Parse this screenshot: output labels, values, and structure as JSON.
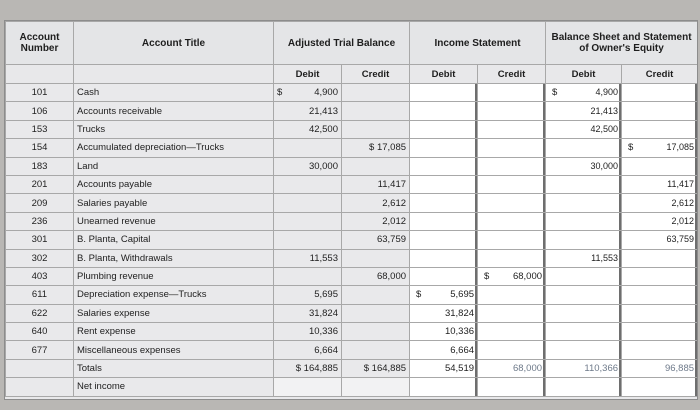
{
  "headers": {
    "account_number": "Account Number",
    "account_title": "Account Title",
    "atb": "Adjusted Trial Balance",
    "is": "Income Statement",
    "bs": "Balance Sheet and Statement of Owner's Equity"
  },
  "subheaders": {
    "atb_debit": "Debit",
    "atb_credit": "Credit",
    "is_debit": "Debit",
    "is_credit": "Credit",
    "bs_debit": "Debit",
    "bs_credit": "Credit"
  },
  "rows": [
    {
      "no": "101",
      "title": "Cash",
      "atb_d": "4,900",
      "atb_d_sym": "$",
      "atb_c": "",
      "is_d": "",
      "is_c": "",
      "bs_d": "4,900",
      "bs_d_sym": "$",
      "bs_c": ""
    },
    {
      "no": "106",
      "title": "Accounts receivable",
      "atb_d": "21,413",
      "atb_c": "",
      "is_d": "",
      "is_c": "",
      "bs_d": "21,413",
      "bs_c": ""
    },
    {
      "no": "153",
      "title": "Trucks",
      "atb_d": "42,500",
      "atb_c": "",
      "is_d": "",
      "is_c": "",
      "bs_d": "42,500",
      "bs_c": ""
    },
    {
      "no": "154",
      "title": "Accumulated depreciation—Trucks",
      "atb_d": "",
      "atb_c": "$ 17,085",
      "is_d": "",
      "is_c": "",
      "bs_d": "",
      "bs_c": "17,085",
      "bs_c_sym": "$"
    },
    {
      "no": "183",
      "title": "Land",
      "atb_d": "30,000",
      "atb_c": "",
      "is_d": "",
      "is_c": "",
      "bs_d": "30,000",
      "bs_c": ""
    },
    {
      "no": "201",
      "title": "Accounts payable",
      "atb_d": "",
      "atb_c": "11,417",
      "is_d": "",
      "is_c": "",
      "bs_d": "",
      "bs_c": "11,417"
    },
    {
      "no": "209",
      "title": "Salaries payable",
      "atb_d": "",
      "atb_c": "2,612",
      "is_d": "",
      "is_c": "",
      "bs_d": "",
      "bs_c": "2,612"
    },
    {
      "no": "236",
      "title": "Unearned revenue",
      "atb_d": "",
      "atb_c": "2,012",
      "is_d": "",
      "is_c": "",
      "bs_d": "",
      "bs_c": "2,012"
    },
    {
      "no": "301",
      "title": "B. Planta, Capital",
      "atb_d": "",
      "atb_c": "63,759",
      "is_d": "",
      "is_c": "",
      "bs_d": "",
      "bs_c": "63,759"
    },
    {
      "no": "302",
      "title": "B. Planta, Withdrawals",
      "atb_d": "11,553",
      "atb_c": "",
      "is_d": "",
      "is_c": "",
      "bs_d": "11,553",
      "bs_c": ""
    },
    {
      "no": "403",
      "title": "Plumbing revenue",
      "atb_d": "",
      "atb_c": "68,000",
      "is_d": "",
      "is_c": "68,000",
      "is_c_sym": "$",
      "bs_d": "",
      "bs_c": ""
    },
    {
      "no": "611",
      "title": "Depreciation expense—Trucks",
      "atb_d": "5,695",
      "atb_c": "",
      "is_d": "5,695",
      "is_d_sym": "$",
      "is_c": "",
      "bs_d": "",
      "bs_c": ""
    },
    {
      "no": "622",
      "title": "Salaries expense",
      "atb_d": "31,824",
      "atb_c": "",
      "is_d": "31,824",
      "is_c": "",
      "bs_d": "",
      "bs_c": ""
    },
    {
      "no": "640",
      "title": "Rent expense",
      "atb_d": "10,336",
      "atb_c": "",
      "is_d": "10,336",
      "is_c": "",
      "bs_d": "",
      "bs_c": ""
    },
    {
      "no": "677",
      "title": "Miscellaneous expenses",
      "atb_d": "6,664",
      "atb_c": "",
      "is_d": "6,664",
      "is_c": "",
      "bs_d": "",
      "bs_c": ""
    }
  ],
  "totals": {
    "title": "Totals",
    "atb_d": "$ 164,885",
    "atb_c": "$ 164,885",
    "is_d": "54,519",
    "is_c": "68,000",
    "bs_d": "110,366",
    "bs_c": "96,885"
  },
  "net_income": {
    "title": "Net income"
  }
}
